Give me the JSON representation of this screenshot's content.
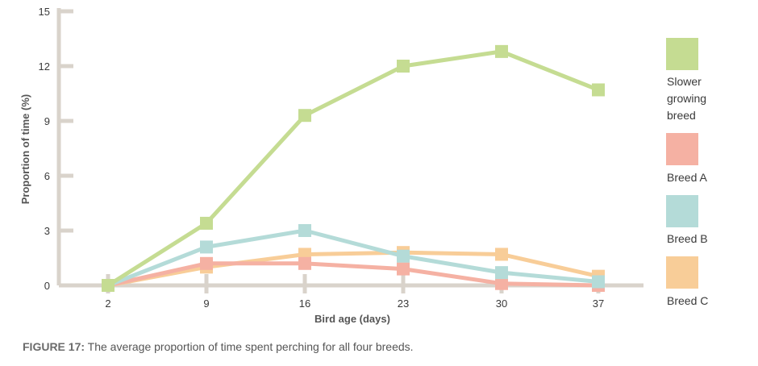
{
  "chart_data": {
    "type": "line",
    "x": [
      2,
      9,
      16,
      23,
      30,
      37
    ],
    "xlabel": "Bird age (days)",
    "ylabel": "Proportion of time (%)",
    "ylim": [
      0,
      15
    ],
    "yticks": [
      0,
      3,
      6,
      9,
      12,
      15
    ],
    "grid": false,
    "legend_position": "right",
    "series": [
      {
        "name": "Slower growing breed",
        "legend_lines": [
          "Slower",
          "growing",
          "breed"
        ],
        "color": "#c5dc92",
        "values": [
          0,
          3.4,
          9.3,
          12.0,
          12.8,
          10.7
        ]
      },
      {
        "name": "Breed A",
        "legend_lines": [
          "Breed A"
        ],
        "color": "#f5b1a3",
        "values": [
          0,
          1.2,
          1.2,
          0.9,
          0.1,
          0.0
        ]
      },
      {
        "name": "Breed B",
        "legend_lines": [
          "Breed B"
        ],
        "color": "#b4dbd8",
        "values": [
          0,
          2.1,
          3.0,
          1.6,
          0.7,
          0.2
        ]
      },
      {
        "name": "Breed C",
        "legend_lines": [
          "Breed C"
        ],
        "color": "#f8cd98",
        "values": [
          0,
          1.0,
          1.7,
          1.8,
          1.7,
          0.5
        ]
      }
    ]
  },
  "caption": {
    "lead": "FIGURE 17:",
    "text": " The average proportion of time spent perching for all four breeds."
  },
  "colors": {
    "axis": "#d9d3cb"
  }
}
